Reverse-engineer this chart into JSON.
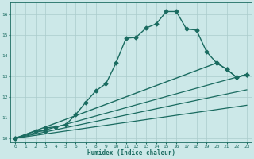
{
  "xlabel": "Humidex (Indice chaleur)",
  "ylabel": "",
  "xlim": [
    -0.5,
    23.5
  ],
  "ylim": [
    9.8,
    16.6
  ],
  "yticks": [
    10,
    11,
    12,
    13,
    14,
    15,
    16
  ],
  "xticks": [
    0,
    1,
    2,
    3,
    4,
    5,
    6,
    7,
    8,
    9,
    10,
    11,
    12,
    13,
    14,
    15,
    16,
    17,
    18,
    19,
    20,
    21,
    22,
    23
  ],
  "bg_color": "#cce8e8",
  "grid_color": "#aacccc",
  "line_color": "#1a6b60",
  "series": [
    {
      "x": [
        0,
        2,
        3,
        3,
        4,
        5,
        6,
        7,
        8,
        9,
        10,
        11,
        12,
        13,
        14,
        15,
        16,
        17,
        18,
        19,
        20,
        21,
        22,
        23
      ],
      "y": [
        10.0,
        10.35,
        10.35,
        10.5,
        10.55,
        10.65,
        11.15,
        11.75,
        12.3,
        12.65,
        13.65,
        14.85,
        14.9,
        15.35,
        15.55,
        16.15,
        16.15,
        15.3,
        15.25,
        14.2,
        13.65,
        13.35,
        12.95,
        13.1
      ],
      "marker": "D",
      "markersize": 2.5,
      "linestyle": "-",
      "linewidth": 1.0
    },
    {
      "x": [
        0,
        20,
        21,
        22,
        23
      ],
      "y": [
        10.0,
        13.65,
        13.35,
        12.95,
        13.1
      ],
      "marker": "D",
      "markersize": 2.5,
      "linestyle": "-",
      "linewidth": 1.0
    },
    {
      "x": [
        0,
        23
      ],
      "y": [
        10.0,
        13.1
      ],
      "marker": null,
      "markersize": 0,
      "linestyle": "-",
      "linewidth": 0.9
    },
    {
      "x": [
        0,
        23
      ],
      "y": [
        10.0,
        12.35
      ],
      "marker": null,
      "markersize": 0,
      "linestyle": "-",
      "linewidth": 0.9
    },
    {
      "x": [
        0,
        23
      ],
      "y": [
        10.0,
        11.6
      ],
      "marker": null,
      "markersize": 0,
      "linestyle": "-",
      "linewidth": 0.9
    }
  ]
}
